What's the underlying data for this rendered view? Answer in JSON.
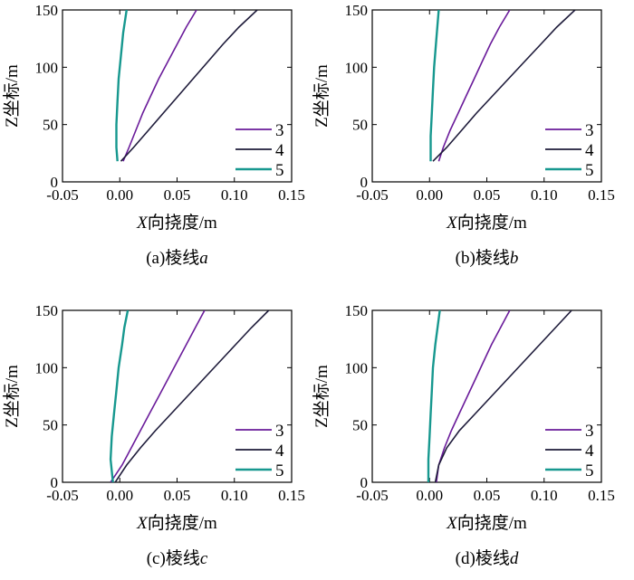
{
  "chart_data": [
    {
      "type": "line",
      "caption": "(a)棱线a",
      "caption_prefix": "(a)棱线",
      "caption_var": "a",
      "xlabel": "X向挠度/m",
      "xlabel_var": "X",
      "xlabel_rest": "向挠度/m",
      "ylabel": "Z坐标/m",
      "xlim": [
        -0.05,
        0.15
      ],
      "ylim": [
        0,
        150
      ],
      "xticks": [
        -0.05,
        0,
        0.05,
        0.1,
        0.15
      ],
      "xtick_labels": [
        "-0.05",
        "0.00",
        "0.05",
        "0.10",
        "0.15"
      ],
      "yticks": [
        0,
        50,
        100,
        150
      ],
      "ytick_labels": [
        "0",
        "50",
        "100",
        "150"
      ],
      "legend_position": "lower-right",
      "series": [
        {
          "name": "3",
          "color": "#6a1b9a",
          "points": [
            [
              0.003,
              18
            ],
            [
              0.008,
              30
            ],
            [
              0.014,
              45
            ],
            [
              0.02,
              60
            ],
            [
              0.027,
              75
            ],
            [
              0.034,
              90
            ],
            [
              0.042,
              105
            ],
            [
              0.05,
              120
            ],
            [
              0.058,
              135
            ],
            [
              0.067,
              150
            ]
          ]
        },
        {
          "name": "4",
          "color": "#1e1b3a",
          "points": [
            [
              0.001,
              18
            ],
            [
              0.012,
              30
            ],
            [
              0.025,
              45
            ],
            [
              0.038,
              60
            ],
            [
              0.051,
              75
            ],
            [
              0.064,
              90
            ],
            [
              0.077,
              105
            ],
            [
              0.09,
              120
            ],
            [
              0.104,
              135
            ],
            [
              0.12,
              150
            ]
          ]
        },
        {
          "name": "5",
          "color": "#17988f",
          "points": [
            [
              -0.002,
              18
            ],
            [
              -0.003,
              30
            ],
            [
              -0.003,
              50
            ],
            [
              -0.002,
              70
            ],
            [
              -0.001,
              90
            ],
            [
              0.001,
              110
            ],
            [
              0.003,
              130
            ],
            [
              0.006,
              150
            ]
          ]
        }
      ]
    },
    {
      "type": "line",
      "caption": "(b)棱线b",
      "caption_prefix": "(b)棱线",
      "caption_var": "b",
      "xlabel": "X向挠度/m",
      "xlabel_var": "X",
      "xlabel_rest": "向挠度/m",
      "ylabel": "Z坐标/m",
      "xlim": [
        -0.05,
        0.15
      ],
      "ylim": [
        0,
        150
      ],
      "xticks": [
        -0.05,
        0,
        0.05,
        0.1,
        0.15
      ],
      "xtick_labels": [
        "-0.05",
        "0.00",
        "0.05",
        "0.10",
        "0.15"
      ],
      "yticks": [
        0,
        50,
        100,
        150
      ],
      "ytick_labels": [
        "0",
        "50",
        "100",
        "150"
      ],
      "legend_position": "lower-right",
      "series": [
        {
          "name": "3",
          "color": "#6a1b9a",
          "points": [
            [
              0.008,
              18
            ],
            [
              0.012,
              30
            ],
            [
              0.018,
              45
            ],
            [
              0.025,
              60
            ],
            [
              0.032,
              75
            ],
            [
              0.039,
              90
            ],
            [
              0.046,
              105
            ],
            [
              0.053,
              120
            ],
            [
              0.061,
              135
            ],
            [
              0.07,
              150
            ]
          ]
        },
        {
          "name": "4",
          "color": "#1e1b3a",
          "points": [
            [
              0.003,
              18
            ],
            [
              0.015,
              30
            ],
            [
              0.028,
              45
            ],
            [
              0.041,
              60
            ],
            [
              0.055,
              75
            ],
            [
              0.069,
              90
            ],
            [
              0.083,
              105
            ],
            [
              0.097,
              120
            ],
            [
              0.111,
              135
            ],
            [
              0.127,
              150
            ]
          ]
        },
        {
          "name": "5",
          "color": "#17988f",
          "points": [
            [
              0.001,
              18
            ],
            [
              0.001,
              40
            ],
            [
              0.002,
              60
            ],
            [
              0.003,
              80
            ],
            [
              0.004,
              100
            ],
            [
              0.006,
              125
            ],
            [
              0.008,
              150
            ]
          ]
        }
      ]
    },
    {
      "type": "line",
      "caption": "(c)棱线c",
      "caption_prefix": "(c)棱线",
      "caption_var": "c",
      "xlabel": "X向挠度/m",
      "xlabel_var": "X",
      "xlabel_rest": "向挠度/m",
      "ylabel": "Z坐标/m",
      "xlim": [
        -0.05,
        0.15
      ],
      "ylim": [
        0,
        150
      ],
      "xticks": [
        -0.05,
        0,
        0.05,
        0.1,
        0.15
      ],
      "xtick_labels": [
        "-0.05",
        "0.00",
        "0.05",
        "0.10",
        "0.15"
      ],
      "yticks": [
        0,
        50,
        100,
        150
      ],
      "ytick_labels": [
        "0",
        "50",
        "100",
        "150"
      ],
      "legend_position": "lower-right",
      "series": [
        {
          "name": "3",
          "color": "#6a1b9a",
          "points": [
            [
              -0.008,
              0
            ],
            [
              0.002,
              15
            ],
            [
              0.01,
              30
            ],
            [
              0.018,
              45
            ],
            [
              0.026,
              60
            ],
            [
              0.034,
              75
            ],
            [
              0.042,
              90
            ],
            [
              0.05,
              105
            ],
            [
              0.058,
              120
            ],
            [
              0.066,
              135
            ],
            [
              0.074,
              150
            ]
          ]
        },
        {
          "name": "4",
          "color": "#1e1b3a",
          "points": [
            [
              -0.004,
              0
            ],
            [
              0.006,
              15
            ],
            [
              0.018,
              30
            ],
            [
              0.031,
              45
            ],
            [
              0.045,
              60
            ],
            [
              0.059,
              75
            ],
            [
              0.073,
              90
            ],
            [
              0.087,
              105
            ],
            [
              0.101,
              120
            ],
            [
              0.115,
              135
            ],
            [
              0.13,
              150
            ]
          ]
        },
        {
          "name": "5",
          "color": "#17988f",
          "points": [
            [
              -0.006,
              0
            ],
            [
              -0.008,
              20
            ],
            [
              -0.007,
              40
            ],
            [
              -0.005,
              60
            ],
            [
              -0.003,
              80
            ],
            [
              -0.001,
              100
            ],
            [
              0.002,
              120
            ],
            [
              0.004,
              135
            ],
            [
              0.007,
              150
            ]
          ]
        }
      ]
    },
    {
      "type": "line",
      "caption": "(d)棱线d",
      "caption_prefix": "(d)棱线",
      "caption_var": "d",
      "xlabel": "X向挠度/m",
      "xlabel_var": "X",
      "xlabel_rest": "向挠度/m",
      "ylabel": "Z坐标/m",
      "xlim": [
        -0.05,
        0.15
      ],
      "ylim": [
        0,
        150
      ],
      "xticks": [
        -0.05,
        0,
        0.05,
        0.1,
        0.15
      ],
      "xtick_labels": [
        "-0.05",
        "0.00",
        "0.05",
        "0.10",
        "0.15"
      ],
      "yticks": [
        0,
        50,
        100,
        150
      ],
      "ytick_labels": [
        "0",
        "50",
        "100",
        "150"
      ],
      "legend_position": "lower-right",
      "series": [
        {
          "name": "3",
          "color": "#6a1b9a",
          "points": [
            [
              0.006,
              0
            ],
            [
              0.008,
              15
            ],
            [
              0.013,
              30
            ],
            [
              0.019,
              45
            ],
            [
              0.026,
              60
            ],
            [
              0.033,
              75
            ],
            [
              0.04,
              90
            ],
            [
              0.047,
              105
            ],
            [
              0.054,
              120
            ],
            [
              0.062,
              135
            ],
            [
              0.07,
              150
            ]
          ]
        },
        {
          "name": "4",
          "color": "#1e1b3a",
          "points": [
            [
              0.005,
              0
            ],
            [
              0.008,
              15
            ],
            [
              0.015,
              30
            ],
            [
              0.026,
              45
            ],
            [
              0.04,
              60
            ],
            [
              0.054,
              75
            ],
            [
              0.068,
              90
            ],
            [
              0.082,
              105
            ],
            [
              0.096,
              120
            ],
            [
              0.11,
              135
            ],
            [
              0.124,
              150
            ]
          ]
        },
        {
          "name": "5",
          "color": "#17988f",
          "points": [
            [
              -0.001,
              0
            ],
            [
              -0.001,
              20
            ],
            [
              0.0,
              40
            ],
            [
              0.001,
              60
            ],
            [
              0.002,
              80
            ],
            [
              0.003,
              100
            ],
            [
              0.005,
              120
            ],
            [
              0.007,
              135
            ],
            [
              0.009,
              150
            ]
          ]
        }
      ]
    }
  ]
}
